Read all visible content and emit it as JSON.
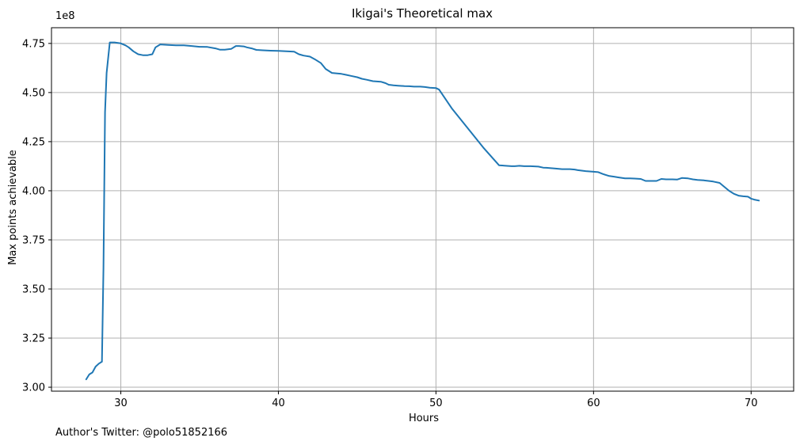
{
  "chart_data": {
    "type": "line",
    "title": "Ikigai's Theoretical max",
    "xlabel": "Hours",
    "ylabel": "Max points achievable",
    "y_scale_label": "1e8",
    "xlim": [
      25.6,
      72.7
    ],
    "ylim": [
      298000000.0,
      483000000.0
    ],
    "x_ticks": [
      30,
      40,
      50,
      60,
      70
    ],
    "x_tick_labels": [
      "30",
      "40",
      "50",
      "60",
      "70"
    ],
    "y_ticks": [
      300000000.0,
      325000000.0,
      350000000.0,
      375000000.0,
      400000000.0,
      425000000.0,
      450000000.0,
      475000000.0
    ],
    "y_tick_labels": [
      "3.00",
      "3.25",
      "3.50",
      "3.75",
      "4.00",
      "4.25",
      "4.50",
      "4.75"
    ],
    "grid": true,
    "line_color": "#1f77b4",
    "series": [
      {
        "x": [
          27.8,
          28.0,
          28.2,
          28.4,
          28.6,
          28.8,
          28.9,
          29.0,
          29.1,
          29.3,
          29.6,
          30.0,
          30.3,
          30.5,
          30.8,
          31.1,
          31.4,
          31.7,
          32.0,
          32.2,
          32.5,
          33.0,
          33.5,
          34.0,
          34.5,
          35.0,
          35.5,
          36.0,
          36.3,
          36.6,
          37.0,
          37.3,
          37.5,
          37.8,
          38.0,
          38.3,
          38.6,
          39.0,
          39.5,
          40.0,
          40.5,
          41.0,
          41.3,
          41.6,
          42.0,
          42.3,
          42.7,
          43.0,
          43.4,
          44.0,
          44.3,
          44.6,
          45.0,
          45.3,
          45.6,
          46.0,
          46.5,
          46.8,
          47.0,
          47.3,
          47.6,
          48.0,
          48.3,
          48.6,
          49.0,
          49.3,
          49.6,
          50.0,
          50.2,
          51.0,
          52.0,
          53.0,
          54.0,
          54.8,
          55.0,
          55.3,
          55.6,
          56.0,
          56.5,
          56.8,
          57.0,
          57.3,
          57.6,
          58.0,
          58.5,
          58.8,
          59.0,
          59.5,
          60.0,
          60.3,
          60.6,
          61.0,
          61.3,
          61.6,
          62.0,
          62.3,
          62.6,
          63.0,
          63.3,
          63.6,
          64.0,
          64.3,
          64.6,
          65.0,
          65.3,
          65.6,
          66.0,
          66.3,
          66.6,
          67.0,
          67.3,
          67.6,
          68.0,
          68.3,
          68.6,
          68.9,
          69.2,
          69.5,
          69.8,
          70.0,
          70.2,
          70.5
        ],
        "y": [
          304000000.0,
          306500000.0,
          307500000.0,
          310500000.0,
          312000000.0,
          313000000.0,
          360000000.0,
          440000000.0,
          460000000.0,
          475500000.0,
          475500000.0,
          475000000.0,
          474000000.0,
          473000000.0,
          471000000.0,
          469500000.0,
          469000000.0,
          469000000.0,
          469500000.0,
          473000000.0,
          474500000.0,
          474200000.0,
          474000000.0,
          474000000.0,
          473700000.0,
          473300000.0,
          473200000.0,
          472500000.0,
          471800000.0,
          471800000.0,
          472200000.0,
          473700000.0,
          473700000.0,
          473500000.0,
          473000000.0,
          472500000.0,
          471700000.0,
          471500000.0,
          471300000.0,
          471200000.0,
          471000000.0,
          470800000.0,
          469500000.0,
          468800000.0,
          468300000.0,
          467000000.0,
          465000000.0,
          462000000.0,
          460000000.0,
          459500000.0,
          459000000.0,
          458500000.0,
          457800000.0,
          457000000.0,
          456500000.0,
          455800000.0,
          455500000.0,
          454800000.0,
          454000000.0,
          453700000.0,
          453500000.0,
          453300000.0,
          453200000.0,
          453000000.0,
          453000000.0,
          452800000.0,
          452500000.0,
          452300000.0,
          451500000.0,
          442000000.0,
          432000000.0,
          422000000.0,
          413000000.0,
          412500000.0,
          412500000.0,
          412700000.0,
          412500000.0,
          412500000.0,
          412300000.0,
          411800000.0,
          411700000.0,
          411500000.0,
          411300000.0,
          411000000.0,
          411000000.0,
          410800000.0,
          410500000.0,
          410000000.0,
          409700000.0,
          409500000.0,
          408500000.0,
          407500000.0,
          407200000.0,
          406800000.0,
          406300000.0,
          406300000.0,
          406200000.0,
          406000000.0,
          405000000.0,
          405000000.0,
          405000000.0,
          406000000.0,
          405800000.0,
          405800000.0,
          405700000.0,
          406500000.0,
          406300000.0,
          405800000.0,
          405500000.0,
          405300000.0,
          405000000.0,
          404700000.0,
          404000000.0,
          402000000.0,
          400000000.0,
          398500000.0,
          397500000.0,
          397200000.0,
          397000000.0,
          396000000.0,
          395500000.0,
          395000000.0
        ]
      }
    ]
  },
  "footer_text": "Author's Twitter: @polo51852166"
}
